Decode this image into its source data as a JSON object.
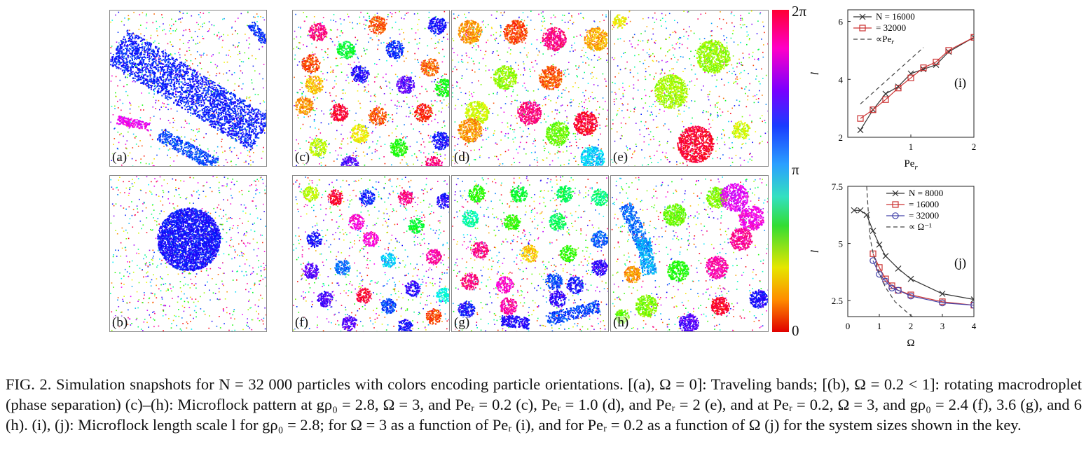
{
  "panels": [
    {
      "id": "a",
      "label": "(a)"
    },
    {
      "id": "b",
      "label": "(b)"
    },
    {
      "id": "c",
      "label": "(c)"
    },
    {
      "id": "d",
      "label": "(d)"
    },
    {
      "id": "e",
      "label": "(e)"
    },
    {
      "id": "f",
      "label": "(f)"
    },
    {
      "id": "g",
      "label": "(g)"
    },
    {
      "id": "h",
      "label": "(h)"
    }
  ],
  "colorbar": {
    "top": "2π",
    "mid": "π",
    "bottom": "0"
  },
  "chart_data": [
    {
      "type": "line",
      "panel_label": "(i)",
      "xlabel": "Pe_r",
      "ylabel": "l",
      "xlim": [
        0,
        2
      ],
      "ylim": [
        2,
        6.4
      ],
      "xticks": [
        1,
        2
      ],
      "yticks": [
        2,
        4,
        6
      ],
      "legend_position": "top-left",
      "series": [
        {
          "name": "N = 16000",
          "marker": "x",
          "color": "#333333",
          "x": [
            0.2,
            0.4,
            0.6,
            0.8,
            1.0,
            1.2,
            1.4,
            1.6,
            2.0
          ],
          "y": [
            2.25,
            2.95,
            3.5,
            3.75,
            4.2,
            4.35,
            4.5,
            4.95,
            5.45
          ]
        },
        {
          "name": "= 32000",
          "marker": "square",
          "color": "#cc3333",
          "x": [
            0.2,
            0.4,
            0.6,
            0.8,
            1.0,
            1.2,
            1.4,
            1.6,
            2.0
          ],
          "y": [
            2.65,
            2.95,
            3.3,
            3.7,
            4.05,
            4.4,
            4.6,
            5.0,
            5.45
          ]
        },
        {
          "name": "∝Pe_r",
          "style": "dashed",
          "color": "#444444",
          "x": [
            0.2,
            1.2
          ],
          "y": [
            3.15,
            5.1
          ]
        }
      ]
    },
    {
      "type": "line",
      "panel_label": "(j)",
      "xlabel": "Ω",
      "ylabel": "l",
      "xlim": [
        0,
        4
      ],
      "ylim": [
        1.8,
        7.5
      ],
      "xticks": [
        0,
        1,
        2,
        3,
        4
      ],
      "yticks": [
        2.5,
        5,
        7.5
      ],
      "legend_position": "top-right",
      "series": [
        {
          "name": "N = 8000",
          "marker": "x",
          "color": "#333333",
          "x": [
            0.2,
            0.4,
            0.6,
            0.8,
            1.0,
            1.2,
            1.6,
            2.0,
            3.0,
            4.0
          ],
          "y": [
            6.45,
            6.45,
            6.25,
            5.55,
            4.95,
            4.45,
            3.9,
            3.45,
            2.8,
            2.55
          ]
        },
        {
          "name": "= 16000",
          "marker": "square",
          "color": "#cc3333",
          "x": [
            0.8,
            1.0,
            1.2,
            1.4,
            1.6,
            2.0,
            3.0,
            4.0
          ],
          "y": [
            4.55,
            3.95,
            3.45,
            3.15,
            2.95,
            2.75,
            2.45,
            2.3
          ]
        },
        {
          "name": "= 32000",
          "marker": "circle",
          "color": "#4444aa",
          "x": [
            0.8,
            1.0,
            1.2,
            1.4,
            1.6,
            2.0,
            3.0,
            4.0
          ],
          "y": [
            4.25,
            3.65,
            3.35,
            3.05,
            2.95,
            2.7,
            2.4,
            2.3
          ]
        },
        {
          "name": "∝ Ω⁻¹",
          "style": "dashed",
          "color": "#444444",
          "x": [
            0.6,
            0.7,
            0.8,
            1.0,
            1.2,
            1.5,
            2.0,
            3.0,
            4.0
          ],
          "y": [
            7.5,
            5.3,
            4.6,
            3.68,
            3.07,
            2.45,
            1.84,
            1.23,
            0.92
          ]
        }
      ]
    }
  ],
  "caption": {
    "text": "FIG. 2.   Simulation snapshots for N = 32 000 particles with colors encoding particle orientations. [(a), Ω = 0]: Traveling bands; [(b), Ω = 0.2 < 1]: rotating macrodroplet (phase separation) (c)–(h): Microflock pattern at gρ₀ = 2.8, Ω = 3, and Peᵣ = 0.2 (c), Peᵣ = 1.0 (d), and Peᵣ = 2 (e), and at Peᵣ = 0.2, Ω = 3, and gρ₀ = 2.4 (f), 3.6 (g), and 6 (h). (i), (j): Microflock length scale l for gρ₀ = 2.8; for Ω = 3 as a function of Peᵣ (i), and for Peᵣ = 0.2 as a function of Ω (j) for the system sizes shown in the key."
  }
}
